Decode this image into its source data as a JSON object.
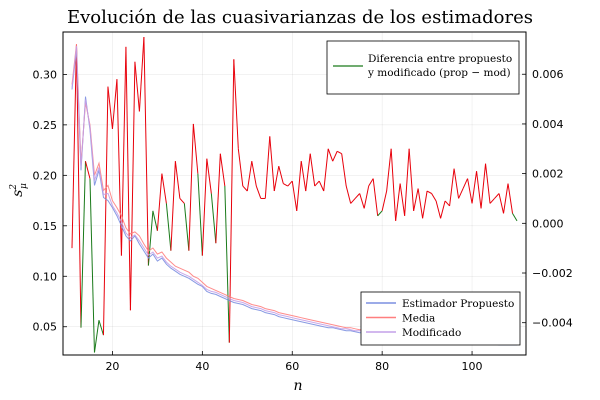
{
  "chart_data": {
    "type": "line",
    "title": "Evolución de las cuasivarianzas de los estimadores",
    "xlabel": "n",
    "ylabel": "s²μ",
    "ylabel_parts": {
      "base": "s",
      "sup": "2",
      "sub": "μ"
    },
    "xlim": [
      9,
      112
    ],
    "xticks": [
      20,
      40,
      60,
      80,
      100
    ],
    "ylim_left": [
      0.022,
      0.342
    ],
    "yticks_left": [
      0.05,
      0.1,
      0.15,
      0.2,
      0.25,
      0.3
    ],
    "ylim_right": [
      -0.0053,
      0.0077
    ],
    "yticks_right": [
      -0.004,
      -0.002,
      0.0,
      0.002,
      0.004,
      0.006
    ],
    "ytick_labels_right": [
      "−0.004",
      "−0.002",
      "0.000",
      "0.002",
      "0.004",
      "0.006"
    ],
    "grid": true,
    "x": [
      11,
      12,
      13,
      14,
      15,
      16,
      17,
      18,
      19,
      20,
      21,
      22,
      23,
      24,
      25,
      26,
      27,
      28,
      29,
      30,
      31,
      32,
      33,
      34,
      35,
      36,
      37,
      38,
      39,
      40,
      41,
      42,
      43,
      44,
      45,
      46,
      47,
      48,
      49,
      50,
      51,
      52,
      53,
      54,
      55,
      56,
      57,
      58,
      59,
      60,
      61,
      62,
      63,
      64,
      65,
      66,
      67,
      68,
      69,
      70,
      71,
      72,
      73,
      74,
      75,
      76,
      77,
      78,
      79,
      80,
      81,
      82,
      83,
      84,
      85,
      86,
      87,
      88,
      89,
      90,
      91,
      92,
      93,
      94,
      95,
      96,
      97,
      98,
      99,
      100,
      101,
      102,
      103,
      104,
      105,
      106,
      107,
      108,
      109,
      110
    ],
    "series_left": [
      {
        "name": "Estimador Propuesto",
        "color": "#7B8FE0",
        "axis": "left",
        "values": [
          0.285,
          0.325,
          0.205,
          0.278,
          0.245,
          0.19,
          0.205,
          0.178,
          0.175,
          0.168,
          0.16,
          0.15,
          0.14,
          0.135,
          0.14,
          0.132,
          0.125,
          0.118,
          0.122,
          0.115,
          0.118,
          0.112,
          0.108,
          0.105,
          0.102,
          0.1,
          0.098,
          0.095,
          0.092,
          0.09,
          0.085,
          0.083,
          0.082,
          0.08,
          0.078,
          0.076,
          0.074,
          0.073,
          0.072,
          0.07,
          0.068,
          0.067,
          0.066,
          0.064,
          0.063,
          0.062,
          0.06,
          0.059,
          0.058,
          0.057,
          0.056,
          0.055,
          0.054,
          0.053,
          0.052,
          0.051,
          0.05,
          0.049,
          0.049,
          0.048,
          0.047,
          0.046,
          0.046,
          0.045,
          0.044,
          0.044,
          0.043,
          0.043,
          0.042,
          0.042,
          0.041,
          0.041,
          0.04,
          0.04,
          0.039,
          0.039,
          0.038,
          0.038,
          0.037,
          0.037,
          0.037,
          0.036,
          0.036,
          0.036,
          0.035,
          0.035,
          0.035,
          0.034,
          0.034,
          0.034,
          0.034,
          0.033,
          0.033,
          0.033,
          0.033,
          0.032,
          0.032,
          0.032,
          0.032,
          0.032
        ]
      },
      {
        "name": "Media",
        "color": "#FF7F7F",
        "axis": "left",
        "values": [
          0.29,
          0.33,
          0.212,
          0.272,
          0.25,
          0.2,
          0.212,
          0.185,
          0.19,
          0.175,
          0.168,
          0.16,
          0.148,
          0.142,
          0.144,
          0.14,
          0.132,
          0.125,
          0.128,
          0.122,
          0.124,
          0.118,
          0.114,
          0.11,
          0.108,
          0.106,
          0.104,
          0.1,
          0.098,
          0.094,
          0.09,
          0.088,
          0.086,
          0.084,
          0.082,
          0.08,
          0.078,
          0.077,
          0.076,
          0.074,
          0.072,
          0.071,
          0.07,
          0.068,
          0.067,
          0.066,
          0.064,
          0.063,
          0.062,
          0.061,
          0.06,
          0.059,
          0.058,
          0.057,
          0.056,
          0.055,
          0.054,
          0.053,
          0.052,
          0.051,
          0.05,
          0.049,
          0.049,
          0.048,
          0.047,
          0.047,
          0.046,
          0.046,
          0.045,
          0.045,
          0.044,
          0.044,
          0.043,
          0.043,
          0.042,
          0.042,
          0.041,
          0.041,
          0.04,
          0.04,
          0.04,
          0.039,
          0.039,
          0.039,
          0.038,
          0.038,
          0.038,
          0.037,
          0.037,
          0.037,
          0.036,
          0.036,
          0.036,
          0.036,
          0.035,
          0.035,
          0.035,
          0.034,
          0.034,
          0.034
        ]
      },
      {
        "name": "Modificado",
        "color": "#C3A0E8",
        "axis": "left",
        "values": [
          0.287,
          0.328,
          0.208,
          0.275,
          0.248,
          0.195,
          0.208,
          0.181,
          0.182,
          0.17,
          0.163,
          0.154,
          0.143,
          0.138,
          0.141,
          0.135,
          0.128,
          0.121,
          0.124,
          0.118,
          0.12,
          0.114,
          0.11,
          0.107,
          0.104,
          0.102,
          0.1,
          0.097,
          0.094,
          0.091,
          0.087,
          0.085,
          0.084,
          0.082,
          0.08,
          0.078,
          0.076,
          0.075,
          0.074,
          0.072,
          0.07,
          0.069,
          0.068,
          0.066,
          0.065,
          0.064,
          0.062,
          0.061,
          0.06,
          0.059,
          0.058,
          0.057,
          0.056,
          0.055,
          0.054,
          0.053,
          0.052,
          0.051,
          0.05,
          0.049,
          0.048,
          0.048,
          0.047,
          0.046,
          0.046,
          0.045,
          0.045,
          0.044,
          0.044,
          0.043,
          0.043,
          0.042,
          0.042,
          0.041,
          0.041,
          0.04,
          0.04,
          0.039,
          0.039,
          0.039,
          0.038,
          0.038,
          0.037,
          0.037,
          0.037,
          0.036,
          0.036,
          0.036,
          0.035,
          0.035,
          0.035,
          0.035,
          0.034,
          0.034,
          0.034,
          0.034,
          0.033,
          0.033,
          0.033,
          0.033
        ]
      }
    ],
    "series_right": {
      "name": "Diferencia entre propuesto y modificado (prop − mod)",
      "axis": "right",
      "color_positive": "#E8000B",
      "color_negative": "#1A7A1A",
      "values": [
        -0.001,
        0.0072,
        -0.0042,
        0.0025,
        0.0018,
        -0.0052,
        -0.0039,
        -0.0045,
        0.0055,
        0.0038,
        0.0058,
        -0.0013,
        0.0071,
        -0.0035,
        0.0065,
        0.0045,
        0.0075,
        -0.0017,
        0.0005,
        -0.0003,
        0.002,
        0.0008,
        -0.0011,
        0.0025,
        0.001,
        0.0008,
        -0.0011,
        0.004,
        0.002,
        -0.0013,
        0.0026,
        0.0012,
        -0.0008,
        0.0028,
        0.0015,
        -0.0048,
        0.0066,
        0.003,
        0.0015,
        0.0013,
        0.0025,
        0.0015,
        0.001,
        0.001,
        0.0035,
        0.0013,
        0.0023,
        0.0016,
        0.0015,
        0.0017,
        0.0005,
        0.0025,
        0.0013,
        0.0028,
        0.0015,
        0.0017,
        0.0013,
        0.003,
        0.0025,
        0.0029,
        0.0028,
        0.0015,
        0.0008,
        0.001,
        0.0012,
        0.0006,
        0.0015,
        0.0018,
        0.0003,
        0.0005,
        0.0013,
        0.003,
        0.0001,
        0.0016,
        0.0003,
        0.003,
        0.0005,
        0.0014,
        0.0002,
        0.0013,
        0.0012,
        0.0009,
        0.0002,
        0.0009,
        0.0007,
        0.0022,
        0.001,
        0.0014,
        0.0018,
        0.0008,
        0.0021,
        0.0006,
        0.0024,
        0.0008,
        0.001,
        0.0012,
        0.0004,
        0.0016,
        0.0004,
        0.0001
      ]
    },
    "legend_right": {
      "lines": [
        "Diferencia entre propuesto",
        "y modificado (prop  −  mod)"
      ],
      "color": "#1A7A1A",
      "placement": "top-right"
    },
    "legend_left": {
      "entries": [
        {
          "label": "Estimador Propuesto",
          "color": "#7B8FE0"
        },
        {
          "label": "Media",
          "color": "#FF7F7F"
        },
        {
          "label": "Modificado",
          "color": "#C3A0E8"
        }
      ],
      "placement": "bottom-right"
    }
  }
}
